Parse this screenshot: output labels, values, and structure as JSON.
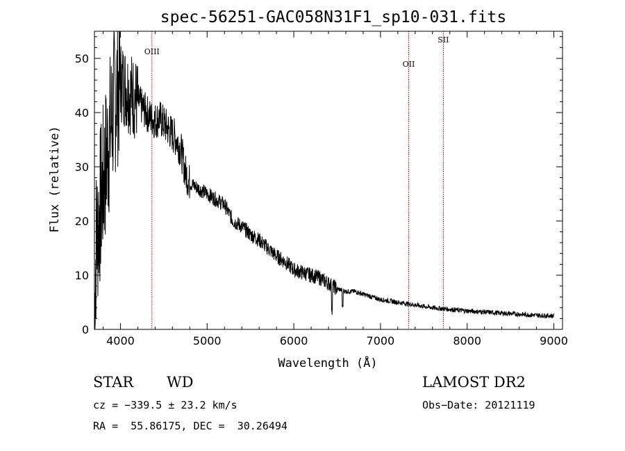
{
  "chart_data": {
    "type": "line",
    "title": "spec-56251-GAC058N31F1_sp10-031.fits",
    "xlabel": "Wavelength (Å)",
    "ylabel": "Flux (relative)",
    "xlim": [
      3700,
      9100
    ],
    "ylim": [
      0,
      55
    ],
    "x_ticks": [
      4000,
      5000,
      6000,
      7000,
      8000,
      9000
    ],
    "y_ticks": [
      0,
      10,
      20,
      30,
      40,
      50
    ],
    "grid": false,
    "series_color": "#000000",
    "line_color": "#8b1a1a",
    "spectrum_anchors": [
      [
        3700,
        3
      ],
      [
        3720,
        16
      ],
      [
        3760,
        22
      ],
      [
        3800,
        27
      ],
      [
        3850,
        33
      ],
      [
        3900,
        39
      ],
      [
        3950,
        44
      ],
      [
        4000,
        46
      ],
      [
        4050,
        45
      ],
      [
        4100,
        44
      ],
      [
        4150,
        43
      ],
      [
        4200,
        42
      ],
      [
        4250,
        41
      ],
      [
        4300,
        40
      ],
      [
        4350,
        39
      ],
      [
        4400,
        38.5
      ],
      [
        4450,
        39
      ],
      [
        4500,
        38
      ],
      [
        4550,
        37
      ],
      [
        4600,
        36
      ],
      [
        4650,
        35
      ],
      [
        4700,
        33
      ],
      [
        4750,
        29
      ],
      [
        4800,
        27
      ],
      [
        4900,
        26
      ],
      [
        5000,
        25
      ],
      [
        5100,
        24
      ],
      [
        5200,
        23
      ],
      [
        5300,
        20
      ],
      [
        5400,
        19
      ],
      [
        5500,
        17.5
      ],
      [
        5600,
        16.5
      ],
      [
        5700,
        15
      ],
      [
        5800,
        13.5
      ],
      [
        5900,
        12.5
      ],
      [
        6000,
        11
      ],
      [
        6100,
        10.5
      ],
      [
        6200,
        10
      ],
      [
        6300,
        9.5
      ],
      [
        6400,
        8.5
      ],
      [
        6500,
        7.5
      ],
      [
        6600,
        7
      ],
      [
        6700,
        7
      ],
      [
        6800,
        6.5
      ],
      [
        6900,
        6
      ],
      [
        7000,
        5.5
      ],
      [
        7200,
        5
      ],
      [
        7400,
        4.5
      ],
      [
        7600,
        4
      ],
      [
        7800,
        3.7
      ],
      [
        8000,
        3.4
      ],
      [
        8200,
        3.2
      ],
      [
        8400,
        3.0
      ],
      [
        8600,
        2.8
      ],
      [
        8800,
        2.6
      ],
      [
        9000,
        2.5
      ]
    ],
    "absorption_features": [
      {
        "x": 6440,
        "depth": 4
      },
      {
        "x": 6563,
        "depth": 3
      }
    ],
    "emission_lines": [
      {
        "label": "OIII",
        "x": 4363
      },
      {
        "label": "OII",
        "x": 7325
      },
      {
        "label": "SII",
        "x": 7725
      }
    ]
  },
  "info": {
    "class_label": "STAR",
    "subclass_label": "WD",
    "survey": "LAMOST DR2",
    "cz": "cz = −339.5 ± 23.2 km/s",
    "obs_date": "Obs−Date: 20121119",
    "coords": "RA =  55.86175, DEC =  30.26494"
  }
}
